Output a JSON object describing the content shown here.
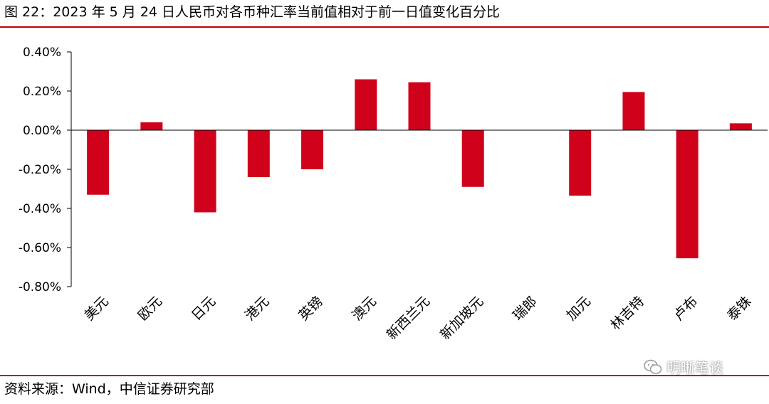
{
  "figure": {
    "title": "图 22：2023 年 5 月 24 日人民币对各币种汇率当前值相对于前一日值变化百分比",
    "source": "资料来源：Wind，中信证券研究部",
    "watermark": "明晰笔谈"
  },
  "colors": {
    "bar": "#d0021b",
    "rule": "#c00000",
    "axis": "#000000"
  },
  "chart_data": {
    "type": "bar",
    "title": "2023 年 5 月 24 日人民币对各币种汇率当前值相对于前一日值变化百分比",
    "categories": [
      "美元",
      "欧元",
      "日元",
      "港元",
      "英镑",
      "澳元",
      "新西兰元",
      "新加坡元",
      "瑞郎",
      "加元",
      "林吉特",
      "卢布",
      "泰铢"
    ],
    "values": [
      -0.33,
      0.04,
      -0.42,
      -0.24,
      -0.2,
      0.26,
      0.245,
      -0.29,
      0.0,
      -0.335,
      0.195,
      -0.655,
      0.035
    ],
    "unit": "%",
    "ylim": [
      -0.8,
      0.4
    ],
    "yticks": [
      0.4,
      0.2,
      0.0,
      -0.2,
      -0.4,
      -0.6,
      -0.8
    ],
    "ytick_labels": [
      "0.40%",
      "0.20%",
      "0.00%",
      "-0.20%",
      "-0.40%",
      "-0.60%",
      "-0.80%"
    ],
    "xlabel": "",
    "ylabel": "",
    "grid": false,
    "legend": "none"
  }
}
